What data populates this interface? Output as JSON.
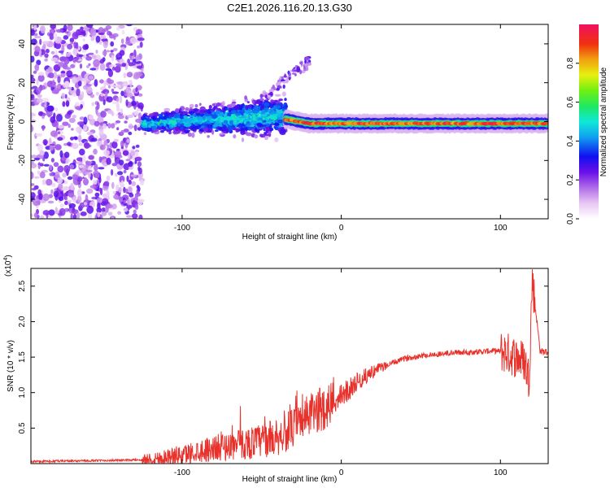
{
  "title": "C2E1.2026.116.20.13.G30",
  "colors": {
    "snr_line": "#e8312b",
    "axis": "#000000",
    "background": "#ffffff"
  },
  "chart_data": [
    {
      "type": "heatmap",
      "name": "spectrogram",
      "xlabel": "Height of straight line (km)",
      "ylabel": "Frequency (Hz)",
      "xlim": [
        -195,
        130
      ],
      "ylim": [
        -50,
        50
      ],
      "xticks": [
        -100,
        0,
        100
      ],
      "yticks": [
        -40,
        -20,
        0,
        20,
        40
      ],
      "colorbar": {
        "label": "Normalized spectral amplitude",
        "range": [
          0,
          1
        ],
        "ticks": [
          0.0,
          0.2,
          0.4,
          0.6,
          0.8
        ]
      },
      "features": [
        {
          "name": "scattered noise",
          "x_range": [
            -195,
            -125
          ],
          "y_range": [
            -50,
            50
          ],
          "amplitude": 0.15
        },
        {
          "name": "broad band",
          "x_range": [
            -125,
            -35
          ],
          "y_center": 0,
          "y_spread": [
            -10,
            14
          ],
          "amplitude": 0.35
        },
        {
          "name": "rising tail",
          "x_range": [
            -60,
            -20
          ],
          "y_range": [
            5,
            33
          ],
          "amplitude": 0.2
        },
        {
          "name": "narrow line",
          "x_range": [
            -35,
            130
          ],
          "y_center": -1,
          "amplitude": 0.9
        }
      ]
    },
    {
      "type": "line",
      "name": "snr",
      "xlabel": "Height of straight line (km)",
      "ylabel": "SNR (10 * v/v)",
      "y_multiplier": "(x10",
      "y_multiplier_exp": "4",
      "y_multiplier_close": ")",
      "xlim": [
        -195,
        130
      ],
      "ylim": [
        0,
        2.75
      ],
      "xticks": [
        -100,
        0,
        100
      ],
      "yticks": [
        0.5,
        1.0,
        1.5,
        2.0,
        2.5
      ],
      "series": [
        {
          "name": "SNR",
          "x": [
            -195,
            -160,
            -130,
            -120,
            -100,
            -90,
            -80,
            -70,
            -60,
            -50,
            -40,
            -30,
            -20,
            -10,
            0,
            10,
            20,
            30,
            40,
            50,
            60,
            70,
            80,
            90,
            95,
            100,
            105,
            110,
            115,
            118,
            120,
            125,
            130
          ],
          "y": [
            0.03,
            0.04,
            0.05,
            0.06,
            0.12,
            0.18,
            0.22,
            0.25,
            0.28,
            0.32,
            0.38,
            0.5,
            0.68,
            0.8,
            0.95,
            1.15,
            1.3,
            1.4,
            1.48,
            1.52,
            1.54,
            1.56,
            1.57,
            1.58,
            1.59,
            1.58,
            1.55,
            1.5,
            1.45,
            1.2,
            2.6,
            1.58,
            1.57
          ]
        }
      ]
    }
  ]
}
